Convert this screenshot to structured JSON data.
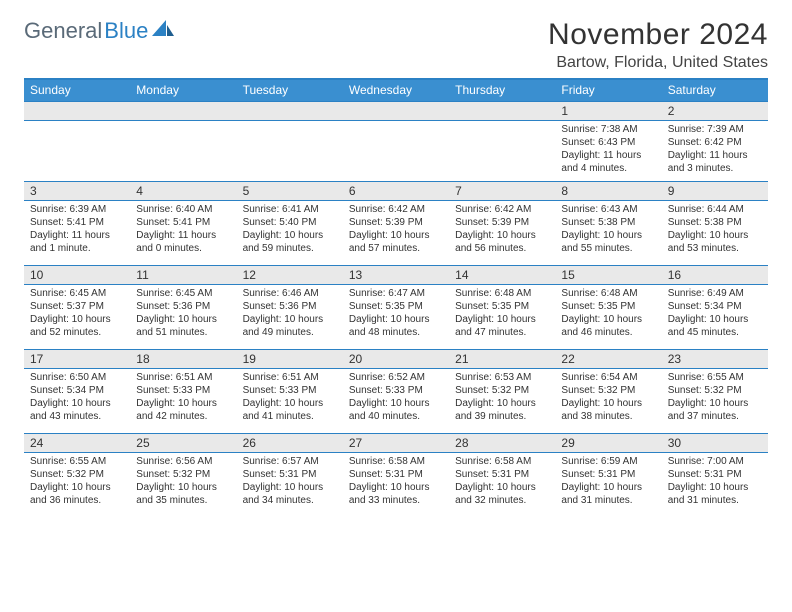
{
  "brand": {
    "part1": "General",
    "part2": "Blue"
  },
  "title": "November 2024",
  "location": "Bartow, Florida, United States",
  "colors": {
    "header_bg": "#3a8fd0",
    "header_text": "#ffffff",
    "border": "#2b81c4",
    "numrow_bg": "#e9e9e9",
    "body_text": "#333333",
    "logo_gray": "#5a6a78",
    "logo_blue": "#2b81c4",
    "page_bg": "#ffffff"
  },
  "typography": {
    "title_fontsize": 30,
    "location_fontsize": 16,
    "dayhead_fontsize": 12,
    "daynum_fontsize": 12,
    "body_fontsize": 10,
    "logo_fontsize": 22
  },
  "day_names": [
    "Sunday",
    "Monday",
    "Tuesday",
    "Wednesday",
    "Thursday",
    "Friday",
    "Saturday"
  ],
  "weeks": [
    {
      "nums": [
        "",
        "",
        "",
        "",
        "",
        "1",
        "2"
      ],
      "cells": [
        "",
        "",
        "",
        "",
        "",
        "Sunrise: 7:38 AM\nSunset: 6:43 PM\nDaylight: 11 hours and 4 minutes.",
        "Sunrise: 7:39 AM\nSunset: 6:42 PM\nDaylight: 11 hours and 3 minutes."
      ]
    },
    {
      "nums": [
        "3",
        "4",
        "5",
        "6",
        "7",
        "8",
        "9"
      ],
      "cells": [
        "Sunrise: 6:39 AM\nSunset: 5:41 PM\nDaylight: 11 hours and 1 minute.",
        "Sunrise: 6:40 AM\nSunset: 5:41 PM\nDaylight: 11 hours and 0 minutes.",
        "Sunrise: 6:41 AM\nSunset: 5:40 PM\nDaylight: 10 hours and 59 minutes.",
        "Sunrise: 6:42 AM\nSunset: 5:39 PM\nDaylight: 10 hours and 57 minutes.",
        "Sunrise: 6:42 AM\nSunset: 5:39 PM\nDaylight: 10 hours and 56 minutes.",
        "Sunrise: 6:43 AM\nSunset: 5:38 PM\nDaylight: 10 hours and 55 minutes.",
        "Sunrise: 6:44 AM\nSunset: 5:38 PM\nDaylight: 10 hours and 53 minutes."
      ]
    },
    {
      "nums": [
        "10",
        "11",
        "12",
        "13",
        "14",
        "15",
        "16"
      ],
      "cells": [
        "Sunrise: 6:45 AM\nSunset: 5:37 PM\nDaylight: 10 hours and 52 minutes.",
        "Sunrise: 6:45 AM\nSunset: 5:36 PM\nDaylight: 10 hours and 51 minutes.",
        "Sunrise: 6:46 AM\nSunset: 5:36 PM\nDaylight: 10 hours and 49 minutes.",
        "Sunrise: 6:47 AM\nSunset: 5:35 PM\nDaylight: 10 hours and 48 minutes.",
        "Sunrise: 6:48 AM\nSunset: 5:35 PM\nDaylight: 10 hours and 47 minutes.",
        "Sunrise: 6:48 AM\nSunset: 5:35 PM\nDaylight: 10 hours and 46 minutes.",
        "Sunrise: 6:49 AM\nSunset: 5:34 PM\nDaylight: 10 hours and 45 minutes."
      ]
    },
    {
      "nums": [
        "17",
        "18",
        "19",
        "20",
        "21",
        "22",
        "23"
      ],
      "cells": [
        "Sunrise: 6:50 AM\nSunset: 5:34 PM\nDaylight: 10 hours and 43 minutes.",
        "Sunrise: 6:51 AM\nSunset: 5:33 PM\nDaylight: 10 hours and 42 minutes.",
        "Sunrise: 6:51 AM\nSunset: 5:33 PM\nDaylight: 10 hours and 41 minutes.",
        "Sunrise: 6:52 AM\nSunset: 5:33 PM\nDaylight: 10 hours and 40 minutes.",
        "Sunrise: 6:53 AM\nSunset: 5:32 PM\nDaylight: 10 hours and 39 minutes.",
        "Sunrise: 6:54 AM\nSunset: 5:32 PM\nDaylight: 10 hours and 38 minutes.",
        "Sunrise: 6:55 AM\nSunset: 5:32 PM\nDaylight: 10 hours and 37 minutes."
      ]
    },
    {
      "nums": [
        "24",
        "25",
        "26",
        "27",
        "28",
        "29",
        "30"
      ],
      "cells": [
        "Sunrise: 6:55 AM\nSunset: 5:32 PM\nDaylight: 10 hours and 36 minutes.",
        "Sunrise: 6:56 AM\nSunset: 5:32 PM\nDaylight: 10 hours and 35 minutes.",
        "Sunrise: 6:57 AM\nSunset: 5:31 PM\nDaylight: 10 hours and 34 minutes.",
        "Sunrise: 6:58 AM\nSunset: 5:31 PM\nDaylight: 10 hours and 33 minutes.",
        "Sunrise: 6:58 AM\nSunset: 5:31 PM\nDaylight: 10 hours and 32 minutes.",
        "Sunrise: 6:59 AM\nSunset: 5:31 PM\nDaylight: 10 hours and 31 minutes.",
        "Sunrise: 7:00 AM\nSunset: 5:31 PM\nDaylight: 10 hours and 31 minutes."
      ]
    }
  ]
}
